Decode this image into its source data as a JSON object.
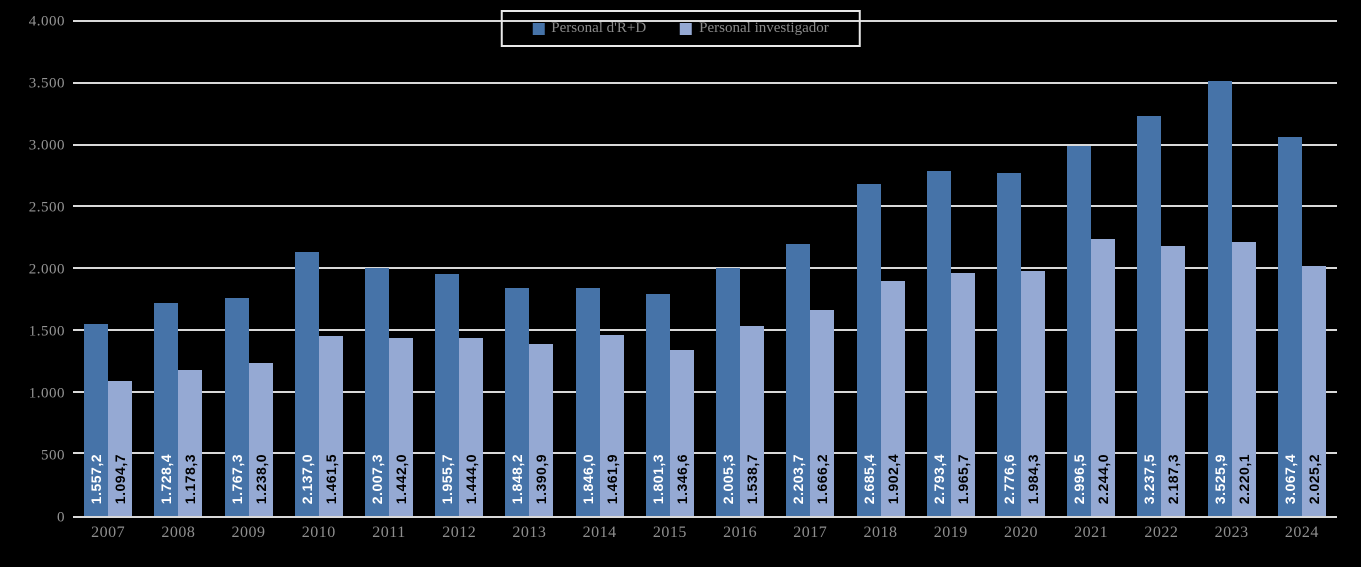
{
  "background_color": "#000000",
  "axis": {
    "label_color": "#949494",
    "gridline_color": "#d9d9d9"
  },
  "legend": {
    "border_color": "#e8e8e8",
    "position": "top-center"
  },
  "chart_data": {
    "type": "bar",
    "title": "",
    "xlabel": "",
    "ylabel": "",
    "ylim": [
      0,
      4000
    ],
    "ytick_interval": 500,
    "yticks": [
      {
        "value": 0,
        "label": "0"
      },
      {
        "value": 500,
        "label": "500"
      },
      {
        "value": 1000,
        "label": "1.000"
      },
      {
        "value": 1500,
        "label": "1.500"
      },
      {
        "value": 2000,
        "label": "2.000"
      },
      {
        "value": 2500,
        "label": "2.500"
      },
      {
        "value": 3000,
        "label": "3.000"
      },
      {
        "value": 3500,
        "label": "3.500"
      },
      {
        "value": 4000,
        "label": "4.000"
      }
    ],
    "grid": true,
    "legend_position": "top-center",
    "categories": [
      "2007",
      "2008",
      "2009",
      "2010",
      "2011",
      "2012",
      "2013",
      "2014",
      "2015",
      "2016",
      "2017",
      "2018",
      "2019",
      "2020",
      "2021",
      "2022",
      "2023",
      "2024"
    ],
    "series": [
      {
        "key": "personal-rd",
        "name": "Personal d'R+D",
        "color": "#4673a8",
        "label_color": "#ffffff",
        "values": [
          1557.2,
          1728.4,
          1767.3,
          2137.0,
          2007.3,
          1955.7,
          1848.2,
          1846.0,
          1801.3,
          2005.3,
          2203.7,
          2685.4,
          2793.4,
          2776.6,
          2996.5,
          3237.5,
          3525.9,
          3067.4
        ],
        "labels": [
          "1.557,2",
          "1.728,4",
          "1.767,3",
          "2.137,0",
          "2.007,3",
          "1.955,7",
          "1.848,2",
          "1.846,0",
          "1.801,3",
          "2.005,3",
          "2.203,7",
          "2.685,4",
          "2.793,4",
          "2.776,6",
          "2.996,5",
          "3.237,5",
          "3.525,9",
          "3.067,4"
        ]
      },
      {
        "key": "personal-investigador",
        "name": "Personal investigador",
        "color": "#95a9d3",
        "label_color": "#000000",
        "values": [
          1094.7,
          1178.3,
          1238.0,
          1461.5,
          1442.0,
          1444.0,
          1390.9,
          1461.9,
          1346.6,
          1538.7,
          1666.2,
          1902.4,
          1965.7,
          1984.3,
          2244.0,
          2187.3,
          2220.1,
          2025.2
        ],
        "labels": [
          "1.094,7",
          "1.178,3",
          "1.238,0",
          "1.461,5",
          "1.442,0",
          "1.444,0",
          "1.390,9",
          "1.461,9",
          "1.346,6",
          "1.538,7",
          "1.666,2",
          "1.902,4",
          "1.965,7",
          "1.984,3",
          "2.244,0",
          "2.187,3",
          "2.220,1",
          "2.025,2"
        ]
      }
    ]
  }
}
